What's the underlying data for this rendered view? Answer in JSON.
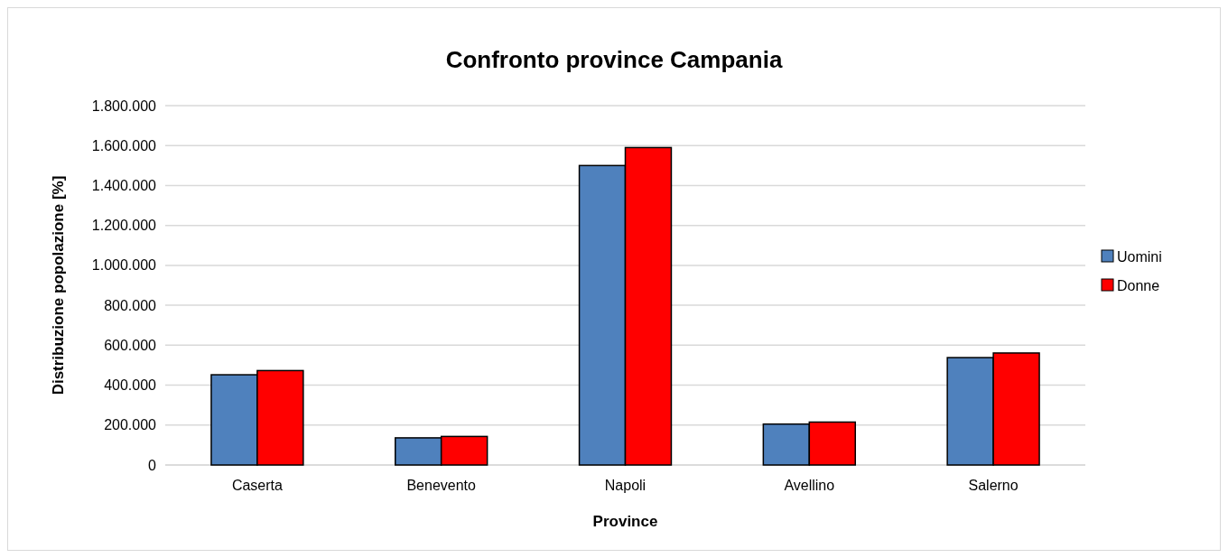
{
  "chart_data": {
    "type": "bar",
    "title": "Confronto province Campania",
    "xlabel": "Province",
    "ylabel": "Distribuzione popolazione [%]",
    "categories": [
      "Caserta",
      "Benevento",
      "Napoli",
      "Avellino",
      "Salerno"
    ],
    "series": [
      {
        "name": "Uomini",
        "color": "#4f81bd",
        "values": [
          452000,
          136000,
          1500000,
          205000,
          538000
        ]
      },
      {
        "name": "Donne",
        "color": "#ff0000",
        "values": [
          473000,
          143000,
          1590000,
          215000,
          561000
        ]
      }
    ],
    "ylim": [
      0,
      1800000
    ],
    "yticks": [
      0,
      {
        "value": 200000,
        "label": "200.000"
      },
      {
        "value": 400000,
        "label": "400.000"
      },
      {
        "value": 600000,
        "label": "600.000"
      },
      {
        "value": 800000,
        "label": "800.000"
      },
      {
        "value": 1000000,
        "label": "1.000.000"
      },
      {
        "value": 1200000,
        "label": "1.200.000"
      },
      {
        "value": 1400000,
        "label": "1.400.000"
      },
      {
        "value": 1600000,
        "label": "1.600.000"
      },
      {
        "value": 1800000,
        "label": "1.800.000"
      }
    ],
    "grid": "y",
    "legend": "right"
  }
}
